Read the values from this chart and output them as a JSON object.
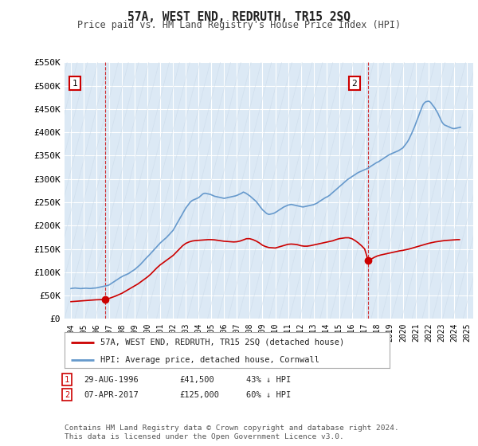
{
  "title": "57A, WEST END, REDRUTH, TR15 2SQ",
  "subtitle": "Price paid vs. HM Land Registry's House Price Index (HPI)",
  "bg_color": "#ffffff",
  "plot_bg_color": "#dce9f5",
  "grid_color": "#ffffff",
  "ylim": [
    0,
    550000
  ],
  "yticks": [
    0,
    50000,
    100000,
    150000,
    200000,
    250000,
    300000,
    350000,
    400000,
    450000,
    500000,
    550000
  ],
  "ytick_labels": [
    "£0",
    "£50K",
    "£100K",
    "£150K",
    "£200K",
    "£250K",
    "£300K",
    "£350K",
    "£400K",
    "£450K",
    "£500K",
    "£550K"
  ],
  "sale1_year": 1996.67,
  "sale1_price": 41500,
  "sale2_year": 2017.27,
  "sale2_price": 125000,
  "legend_label_red": "57A, WEST END, REDRUTH, TR15 2SQ (detached house)",
  "legend_label_blue": "HPI: Average price, detached house, Cornwall",
  "footer": "Contains HM Land Registry data © Crown copyright and database right 2024.\nThis data is licensed under the Open Government Licence v3.0.",
  "red_color": "#cc0000",
  "blue_color": "#6699cc",
  "hpi_x": [
    1994.0,
    1994.08,
    1994.17,
    1994.25,
    1994.33,
    1994.42,
    1994.5,
    1994.58,
    1994.67,
    1994.75,
    1994.83,
    1994.92,
    1995.0,
    1995.08,
    1995.17,
    1995.25,
    1995.33,
    1995.42,
    1995.5,
    1995.58,
    1995.67,
    1995.75,
    1995.83,
    1995.92,
    1996.0,
    1996.08,
    1996.17,
    1996.25,
    1996.33,
    1996.42,
    1996.5,
    1996.58,
    1996.67,
    1996.75,
    1996.83,
    1996.92,
    1997.0,
    1997.08,
    1997.17,
    1997.25,
    1997.33,
    1997.42,
    1997.5,
    1997.58,
    1997.67,
    1997.75,
    1997.83,
    1997.92,
    1998.0,
    1998.08,
    1998.17,
    1998.25,
    1998.33,
    1998.42,
    1998.5,
    1998.58,
    1998.67,
    1998.75,
    1998.83,
    1998.92,
    1999.0,
    1999.08,
    1999.17,
    1999.25,
    1999.33,
    1999.42,
    1999.5,
    1999.58,
    1999.67,
    1999.75,
    1999.83,
    1999.92,
    2000.0,
    2000.08,
    2000.17,
    2000.25,
    2000.33,
    2000.42,
    2000.5,
    2000.58,
    2000.67,
    2000.75,
    2000.83,
    2000.92,
    2001.0,
    2001.08,
    2001.17,
    2001.25,
    2001.33,
    2001.42,
    2001.5,
    2001.58,
    2001.67,
    2001.75,
    2001.83,
    2001.92,
    2002.0,
    2002.08,
    2002.17,
    2002.25,
    2002.33,
    2002.42,
    2002.5,
    2002.58,
    2002.67,
    2002.75,
    2002.83,
    2002.92,
    2003.0,
    2003.08,
    2003.17,
    2003.25,
    2003.33,
    2003.42,
    2003.5,
    2003.58,
    2003.67,
    2003.75,
    2003.83,
    2003.92,
    2004.0,
    2004.08,
    2004.17,
    2004.25,
    2004.33,
    2004.42,
    2004.5,
    2004.58,
    2004.67,
    2004.75,
    2004.83,
    2004.92,
    2005.0,
    2005.08,
    2005.17,
    2005.25,
    2005.33,
    2005.42,
    2005.5,
    2005.58,
    2005.67,
    2005.75,
    2005.83,
    2005.92,
    2006.0,
    2006.08,
    2006.17,
    2006.25,
    2006.33,
    2006.42,
    2006.5,
    2006.58,
    2006.67,
    2006.75,
    2006.83,
    2006.92,
    2007.0,
    2007.08,
    2007.17,
    2007.25,
    2007.33,
    2007.42,
    2007.5,
    2007.58,
    2007.67,
    2007.75,
    2007.83,
    2007.92,
    2008.0,
    2008.08,
    2008.17,
    2008.25,
    2008.33,
    2008.42,
    2008.5,
    2008.58,
    2008.67,
    2008.75,
    2008.83,
    2008.92,
    2009.0,
    2009.08,
    2009.17,
    2009.25,
    2009.33,
    2009.42,
    2009.5,
    2009.58,
    2009.67,
    2009.75,
    2009.83,
    2009.92,
    2010.0,
    2010.08,
    2010.17,
    2010.25,
    2010.33,
    2010.42,
    2010.5,
    2010.58,
    2010.67,
    2010.75,
    2010.83,
    2010.92,
    2011.0,
    2011.08,
    2011.17,
    2011.25,
    2011.33,
    2011.42,
    2011.5,
    2011.58,
    2011.67,
    2011.75,
    2011.83,
    2011.92,
    2012.0,
    2012.08,
    2012.17,
    2012.25,
    2012.33,
    2012.42,
    2012.5,
    2012.58,
    2012.67,
    2012.75,
    2012.83,
    2012.92,
    2013.0,
    2013.08,
    2013.17,
    2013.25,
    2013.33,
    2013.42,
    2013.5,
    2013.58,
    2013.67,
    2013.75,
    2013.83,
    2013.92,
    2014.0,
    2014.08,
    2014.17,
    2014.25,
    2014.33,
    2014.42,
    2014.5,
    2014.58,
    2014.67,
    2014.75,
    2014.83,
    2014.92,
    2015.0,
    2015.08,
    2015.17,
    2015.25,
    2015.33,
    2015.42,
    2015.5,
    2015.58,
    2015.67,
    2015.75,
    2015.83,
    2015.92,
    2016.0,
    2016.08,
    2016.17,
    2016.25,
    2016.33,
    2016.42,
    2016.5,
    2016.58,
    2016.67,
    2016.75,
    2016.83,
    2016.92,
    2017.0,
    2017.08,
    2017.17,
    2017.25,
    2017.33,
    2017.42,
    2017.5,
    2017.58,
    2017.67,
    2017.75,
    2017.83,
    2017.92,
    2018.0,
    2018.08,
    2018.17,
    2018.25,
    2018.33,
    2018.42,
    2018.5,
    2018.58,
    2018.67,
    2018.75,
    2018.83,
    2018.92,
    2019.0,
    2019.08,
    2019.17,
    2019.25,
    2019.33,
    2019.42,
    2019.5,
    2019.58,
    2019.67,
    2019.75,
    2019.83,
    2019.92,
    2020.0,
    2020.08,
    2020.17,
    2020.25,
    2020.33,
    2020.42,
    2020.5,
    2020.58,
    2020.67,
    2020.75,
    2020.83,
    2020.92,
    2021.0,
    2021.08,
    2021.17,
    2021.25,
    2021.33,
    2021.42,
    2021.5,
    2021.58,
    2021.67,
    2021.75,
    2021.83,
    2021.92,
    2022.0,
    2022.08,
    2022.17,
    2022.25,
    2022.33,
    2022.42,
    2022.5,
    2022.58,
    2022.67,
    2022.75,
    2022.83,
    2022.92,
    2023.0,
    2023.08,
    2023.17,
    2023.25,
    2023.33,
    2023.42,
    2023.5,
    2023.58,
    2023.67,
    2023.75,
    2023.83,
    2023.92,
    2024.0,
    2024.08,
    2024.17,
    2024.25,
    2024.33,
    2024.42,
    2024.5
  ],
  "hpi_y": [
    65000,
    65500,
    65800,
    66000,
    66200,
    66000,
    65800,
    65500,
    65200,
    65000,
    65100,
    65300,
    65500,
    65700,
    65800,
    65600,
    65400,
    65300,
    65200,
    65400,
    65600,
    65800,
    66000,
    66200,
    66500,
    67000,
    67500,
    68000,
    68500,
    69000,
    69500,
    70000,
    70500,
    71000,
    71500,
    72000,
    73000,
    74500,
    76000,
    77500,
    79000,
    80500,
    82000,
    83500,
    85000,
    86500,
    88000,
    89500,
    91000,
    92000,
    93000,
    94000,
    95000,
    96000,
    97000,
    98500,
    100000,
    101500,
    103000,
    104500,
    106000,
    108000,
    110000,
    112000,
    114000,
    116000,
    118500,
    121000,
    123500,
    126000,
    128500,
    131000,
    133000,
    135500,
    138000,
    140500,
    143000,
    145500,
    148000,
    150500,
    153000,
    155500,
    158000,
    160500,
    163000,
    165000,
    167000,
    169000,
    171000,
    173000,
    175000,
    177500,
    180000,
    182500,
    185000,
    187500,
    190000,
    194000,
    198000,
    202000,
    206000,
    210000,
    214000,
    218000,
    222000,
    226000,
    230000,
    234000,
    238000,
    241000,
    244000,
    247000,
    250000,
    252000,
    254000,
    255000,
    256000,
    257000,
    258000,
    259000,
    260000,
    262000,
    264000,
    266000,
    268000,
    269000,
    269500,
    269000,
    268500,
    268000,
    267500,
    267000,
    266000,
    265000,
    264000,
    263000,
    262500,
    262000,
    261500,
    261000,
    260500,
    260000,
    259500,
    259000,
    258500,
    259000,
    259500,
    260000,
    260500,
    261000,
    261500,
    262000,
    262500,
    263000,
    263500,
    264000,
    265000,
    266000,
    267000,
    268000,
    269000,
    270500,
    272000,
    271000,
    270000,
    268500,
    267000,
    265500,
    264000,
    262000,
    260000,
    258000,
    256000,
    254000,
    252000,
    249000,
    246000,
    243000,
    240000,
    237000,
    234000,
    232000,
    230000,
    228000,
    226000,
    225000,
    224000,
    224500,
    225000,
    225500,
    226000,
    227000,
    228000,
    229500,
    231000,
    232500,
    234000,
    235500,
    237000,
    238500,
    240000,
    241000,
    242000,
    243000,
    244000,
    244500,
    245000,
    245500,
    245000,
    244500,
    244000,
    243500,
    243000,
    242500,
    242000,
    241500,
    241000,
    240500,
    240000,
    240500,
    241000,
    241500,
    242000,
    242500,
    243000,
    243500,
    244000,
    244500,
    245000,
    246000,
    247000,
    248000,
    249500,
    251000,
    252500,
    254000,
    255500,
    257000,
    258500,
    260000,
    261000,
    262000,
    263500,
    265000,
    267000,
    269000,
    271000,
    273000,
    275000,
    277000,
    279000,
    281000,
    283000,
    285000,
    287000,
    289000,
    291000,
    293000,
    295000,
    297000,
    299000,
    300500,
    302000,
    303500,
    305000,
    306500,
    308000,
    309500,
    311000,
    312500,
    314000,
    315000,
    316000,
    317000,
    318000,
    319000,
    320000,
    321000,
    322000,
    323000,
    324500,
    326000,
    327500,
    329000,
    330500,
    332000,
    333500,
    335000,
    336000,
    337000,
    338500,
    340000,
    341500,
    343000,
    344500,
    346000,
    347500,
    349000,
    350500,
    352000,
    353000,
    354000,
    355000,
    356000,
    357000,
    358000,
    359000,
    360000,
    361000,
    362500,
    364000,
    365500,
    367000,
    370000,
    373000,
    376000,
    379000,
    383000,
    387000,
    392000,
    397000,
    402000,
    407000,
    413000,
    419000,
    425000,
    431000,
    437000,
    443000,
    449000,
    455000,
    460000,
    463000,
    465000,
    466000,
    466500,
    467000,
    466000,
    464000,
    461000,
    458000,
    455000,
    452000,
    448000,
    444000,
    440000,
    435000,
    430000,
    425000,
    421000,
    418000,
    416000,
    415000,
    414000,
    413000,
    412000,
    411000,
    410000,
    409000,
    408500,
    408000,
    408500,
    409000,
    409500,
    410000,
    410500,
    411000
  ],
  "price_x": [
    1994.0,
    1994.25,
    1994.5,
    1994.75,
    1995.0,
    1995.25,
    1995.5,
    1995.75,
    1996.0,
    1996.25,
    1996.5,
    1996.67,
    1996.75,
    1997.0,
    1997.25,
    1997.5,
    1997.75,
    1998.0,
    1998.25,
    1998.5,
    1998.75,
    1999.0,
    1999.25,
    1999.5,
    1999.75,
    2000.0,
    2000.25,
    2000.5,
    2000.75,
    2001.0,
    2001.25,
    2001.5,
    2001.75,
    2002.0,
    2002.25,
    2002.5,
    2002.75,
    2003.0,
    2003.25,
    2003.5,
    2003.75,
    2004.0,
    2004.25,
    2004.5,
    2004.75,
    2005.0,
    2005.25,
    2005.5,
    2005.75,
    2006.0,
    2006.25,
    2006.5,
    2006.75,
    2007.0,
    2007.25,
    2007.5,
    2007.75,
    2008.0,
    2008.25,
    2008.5,
    2008.75,
    2009.0,
    2009.25,
    2009.5,
    2009.75,
    2010.0,
    2010.25,
    2010.5,
    2010.75,
    2011.0,
    2011.25,
    2011.5,
    2011.75,
    2012.0,
    2012.25,
    2012.5,
    2012.75,
    2013.0,
    2013.25,
    2013.5,
    2013.75,
    2014.0,
    2014.25,
    2014.5,
    2014.75,
    2015.0,
    2015.25,
    2015.5,
    2015.75,
    2016.0,
    2016.25,
    2016.5,
    2016.75,
    2017.0,
    2017.27,
    2017.5,
    2017.75,
    2018.0,
    2018.25,
    2018.5,
    2018.75,
    2019.0,
    2019.25,
    2019.5,
    2019.75,
    2020.0,
    2020.25,
    2020.5,
    2020.75,
    2021.0,
    2021.25,
    2021.5,
    2021.75,
    2022.0,
    2022.25,
    2022.5,
    2022.75,
    2023.0,
    2023.25,
    2023.5,
    2023.75,
    2024.0,
    2024.25,
    2024.42
  ],
  "price_y": [
    37000,
    37500,
    38000,
    38500,
    39000,
    39500,
    40000,
    40500,
    41000,
    41200,
    41400,
    41500,
    42000,
    44000,
    46500,
    49000,
    52000,
    55000,
    59000,
    63000,
    67000,
    71000,
    75000,
    80000,
    85000,
    90000,
    96000,
    103000,
    110000,
    116000,
    121000,
    126000,
    131000,
    136000,
    143000,
    150000,
    157000,
    162000,
    165000,
    167000,
    168000,
    168500,
    169000,
    169500,
    170000,
    170000,
    169500,
    168500,
    167500,
    166500,
    166000,
    165500,
    165000,
    165500,
    167000,
    169500,
    172000,
    172000,
    170000,
    167000,
    163000,
    158000,
    155000,
    153000,
    152500,
    152000,
    154000,
    156000,
    158000,
    160000,
    160500,
    160000,
    159000,
    157000,
    156000,
    156000,
    157000,
    158500,
    160000,
    161500,
    163000,
    164500,
    166000,
    167500,
    170000,
    172000,
    173000,
    174000,
    174000,
    172000,
    168000,
    163000,
    157000,
    150000,
    125000,
    128000,
    132000,
    135000,
    137000,
    138500,
    140000,
    141500,
    143000,
    144500,
    146000,
    147000,
    148500,
    150000,
    152000,
    154000,
    156000,
    158000,
    160000,
    162000,
    163500,
    165000,
    166000,
    167000,
    168000,
    168500,
    169000,
    169500,
    170000,
    170000
  ]
}
